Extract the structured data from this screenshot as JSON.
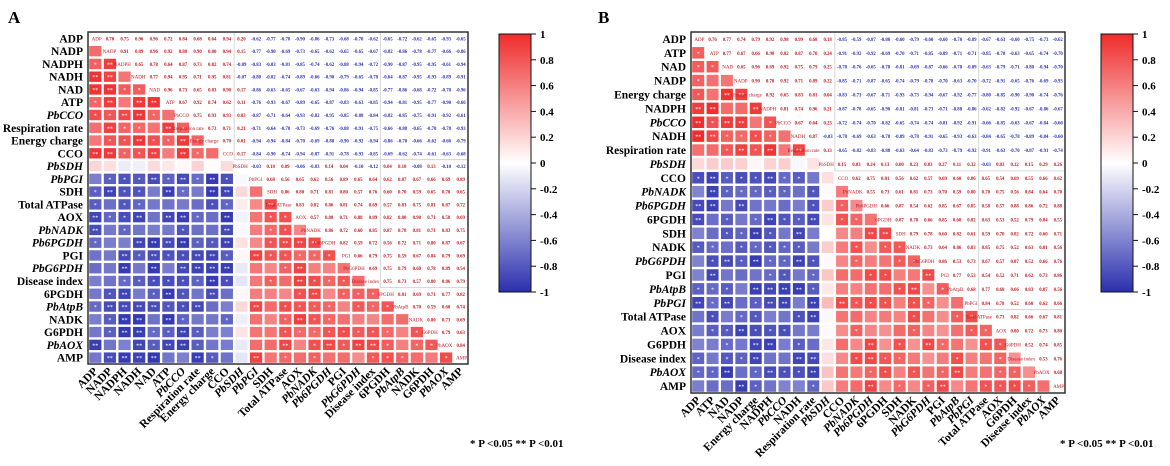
{
  "panels": [
    {
      "letter": "A",
      "significance_note": "* P <0.05  ** P <0.01",
      "colorbar_ticks": [
        "1",
        "0.8",
        "0.6",
        "0.4",
        "0.2",
        "0",
        "-0.2",
        "-0.4",
        "-0.6",
        "-0.8",
        "-1"
      ],
      "colors": {
        "positive": "#ef2b2b",
        "neutral": "#ffffff",
        "negative": "#2a2fae"
      },
      "chart_data": {
        "type": "heatmap",
        "title": "",
        "variables": [
          "ADP",
          "NADP",
          "NADPH",
          "NADH",
          "NAD",
          "ATP",
          "PbCCO",
          "Respiration rate",
          "Energy charge",
          "CCO",
          "PbSDH",
          "PbPGI",
          "SDH",
          "Total ATPase",
          "AOX",
          "PbNADK",
          "Pb6PGDH",
          "PGI",
          "PbG6PDH",
          "Disease index",
          "6PGDH",
          "PbAtpB",
          "NADK",
          "G6PDH",
          "PbAOX",
          "AMP"
        ],
        "italic_variables": [
          "PbCCO",
          "PbSDH",
          "PbPGI",
          "PbNADK",
          "Pb6PGDH",
          "PbG6PDH",
          "PbAtpB",
          "PbAOX"
        ],
        "group_sizes": [
          10,
          1,
          15
        ],
        "within_group1": 0.8,
        "within_group3": 0.72,
        "between_groups": -0.78,
        "pbsdh_corr": 0.05,
        "vmin": -1,
        "vmax": 1,
        "lower_triangle": "colored squares with significance stars",
        "upper_triangle": "correlation coefficients as text",
        "diagonal": "variable name"
      }
    },
    {
      "letter": "B",
      "significance_note": "* P <0.05  ** P <0.01",
      "colorbar_ticks": [
        "1",
        "0.8",
        "0.6",
        "0.4",
        "0.2",
        "0",
        "-0.2",
        "-0.4",
        "-0.6",
        "-0.8",
        "-1"
      ],
      "colors": {
        "positive": "#ef2b2b",
        "neutral": "#ffffff",
        "negative": "#2a2fae"
      },
      "chart_data": {
        "type": "heatmap",
        "title": "",
        "variables": [
          "ADP",
          "ATP",
          "NAD",
          "NADP",
          "Energy charge",
          "NADPH",
          "PbCCO",
          "NADH",
          "Respiration rate",
          "PbSDH",
          "CCO",
          "PbNADK",
          "Pb6PGDH",
          "6PGDH",
          "SDH",
          "NADK",
          "PbG6PDH",
          "PGI",
          "PbAtpB",
          "PbPGI",
          "Total ATPase",
          "AOX",
          "G6PDH",
          "Disease index",
          "PbAOX",
          "AMP"
        ],
        "italic_variables": [
          "PbCCO",
          "PbSDH",
          "PbNADK",
          "Pb6PGDH",
          "PbG6PDH",
          "PbAtpB",
          "PbPGI",
          "PbAOX"
        ],
        "group_sizes": [
          9,
          1,
          16
        ],
        "within_group1": 0.82,
        "within_group3": 0.7,
        "between_groups": -0.76,
        "pbsdh_corr": 0.15,
        "vmin": -1,
        "vmax": 1,
        "lower_triangle": "colored squares with significance stars",
        "upper_triangle": "correlation coefficients as text",
        "diagonal": "variable name"
      }
    }
  ]
}
